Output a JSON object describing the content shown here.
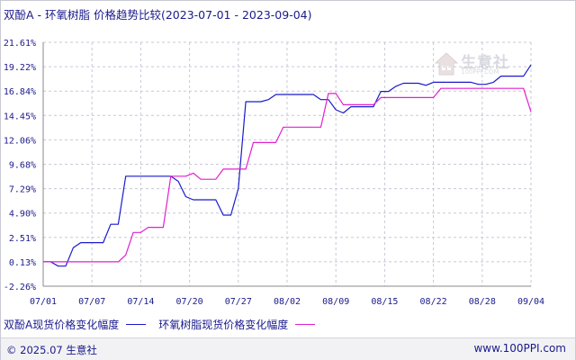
{
  "title": "双酚A - 环氧树脂 价格趋势比较(2023-07-01 - 2023-09-04)",
  "footer": {
    "copyright": "© 2025.07 生意社",
    "url": "www.100PPI.com"
  },
  "watermark": {
    "name": "生意社",
    "sub": "100PPI.COM"
  },
  "colors": {
    "series1": "#1a1acc",
    "series2": "#e020d0",
    "grid": "#c8c8d8",
    "text": "#1a1a8c"
  },
  "chart_data": {
    "type": "line",
    "x_ticks": [
      "07/01",
      "07/07",
      "07/14",
      "07/20",
      "07/27",
      "08/02",
      "08/09",
      "08/15",
      "08/22",
      "08/28",
      "09/04"
    ],
    "y_ticks": [
      "21.61%",
      "19.22%",
      "16.84%",
      "14.45%",
      "12.06%",
      "9.68%",
      "7.29%",
      "4.90%",
      "2.51%",
      "0.13%",
      "-2.26%"
    ],
    "ylim": [
      -2.26,
      21.61
    ],
    "x_range_days": [
      0,
      65
    ],
    "grid": "dashed",
    "legend_position": "bottom",
    "series": [
      {
        "name": "双酚A现货价格变化幅度",
        "color": "#1a1acc",
        "points": [
          [
            0,
            0.13
          ],
          [
            1,
            0.13
          ],
          [
            2,
            -0.3
          ],
          [
            3,
            -0.3
          ],
          [
            4,
            1.5
          ],
          [
            5,
            2.0
          ],
          [
            6,
            2.0
          ],
          [
            7,
            2.0
          ],
          [
            8,
            2.0
          ],
          [
            9,
            3.8
          ],
          [
            10,
            3.8
          ],
          [
            11,
            8.5
          ],
          [
            12,
            8.5
          ],
          [
            13,
            8.5
          ],
          [
            14,
            8.5
          ],
          [
            15,
            8.5
          ],
          [
            16,
            8.5
          ],
          [
            17,
            8.5
          ],
          [
            18,
            8.0
          ],
          [
            19,
            6.5
          ],
          [
            20,
            6.2
          ],
          [
            21,
            6.2
          ],
          [
            22,
            6.2
          ],
          [
            23,
            6.2
          ],
          [
            24,
            4.7
          ],
          [
            25,
            4.7
          ],
          [
            26,
            7.3
          ],
          [
            27,
            15.8
          ],
          [
            28,
            15.8
          ],
          [
            29,
            15.8
          ],
          [
            30,
            16.0
          ],
          [
            31,
            16.5
          ],
          [
            32,
            16.5
          ],
          [
            33,
            16.5
          ],
          [
            34,
            16.5
          ],
          [
            35,
            16.5
          ],
          [
            36,
            16.5
          ],
          [
            37,
            16.0
          ],
          [
            38,
            16.0
          ],
          [
            39,
            15.0
          ],
          [
            40,
            14.7
          ],
          [
            41,
            15.3
          ],
          [
            42,
            15.3
          ],
          [
            43,
            15.3
          ],
          [
            44,
            15.3
          ],
          [
            45,
            16.8
          ],
          [
            46,
            16.8
          ],
          [
            47,
            17.3
          ],
          [
            48,
            17.6
          ],
          [
            49,
            17.6
          ],
          [
            50,
            17.6
          ],
          [
            51,
            17.4
          ],
          [
            52,
            17.7
          ],
          [
            53,
            17.7
          ],
          [
            54,
            17.7
          ],
          [
            55,
            17.7
          ],
          [
            56,
            17.7
          ],
          [
            57,
            17.7
          ],
          [
            58,
            17.5
          ],
          [
            59,
            17.5
          ],
          [
            60,
            17.7
          ],
          [
            61,
            18.3
          ],
          [
            62,
            18.3
          ],
          [
            63,
            18.3
          ],
          [
            64,
            18.3
          ],
          [
            65,
            19.4
          ]
        ]
      },
      {
        "name": "环氧树脂现货价格变化幅度",
        "color": "#e020d0",
        "points": [
          [
            0,
            0.13
          ],
          [
            1,
            0.13
          ],
          [
            2,
            0.13
          ],
          [
            3,
            0.13
          ],
          [
            4,
            0.13
          ],
          [
            5,
            0.13
          ],
          [
            6,
            0.13
          ],
          [
            7,
            0.13
          ],
          [
            8,
            0.13
          ],
          [
            9,
            0.13
          ],
          [
            10,
            0.13
          ],
          [
            11,
            0.8
          ],
          [
            12,
            3.0
          ],
          [
            13,
            3.0
          ],
          [
            14,
            3.5
          ],
          [
            15,
            3.5
          ],
          [
            16,
            3.5
          ],
          [
            17,
            8.5
          ],
          [
            18,
            8.5
          ],
          [
            19,
            8.5
          ],
          [
            20,
            8.8
          ],
          [
            21,
            8.2
          ],
          [
            22,
            8.2
          ],
          [
            23,
            8.2
          ],
          [
            24,
            9.2
          ],
          [
            25,
            9.2
          ],
          [
            26,
            9.2
          ],
          [
            27,
            9.2
          ],
          [
            28,
            11.8
          ],
          [
            29,
            11.8
          ],
          [
            30,
            11.8
          ],
          [
            31,
            11.8
          ],
          [
            32,
            13.3
          ],
          [
            33,
            13.3
          ],
          [
            34,
            13.3
          ],
          [
            35,
            13.3
          ],
          [
            36,
            13.3
          ],
          [
            37,
            13.3
          ],
          [
            38,
            16.6
          ],
          [
            39,
            16.6
          ],
          [
            40,
            15.5
          ],
          [
            41,
            15.5
          ],
          [
            42,
            15.5
          ],
          [
            43,
            15.5
          ],
          [
            44,
            15.5
          ],
          [
            45,
            16.2
          ],
          [
            46,
            16.2
          ],
          [
            47,
            16.2
          ],
          [
            48,
            16.2
          ],
          [
            49,
            16.2
          ],
          [
            50,
            16.2
          ],
          [
            51,
            16.2
          ],
          [
            52,
            16.2
          ],
          [
            53,
            17.1
          ],
          [
            54,
            17.1
          ],
          [
            55,
            17.1
          ],
          [
            56,
            17.1
          ],
          [
            57,
            17.1
          ],
          [
            58,
            17.1
          ],
          [
            59,
            17.1
          ],
          [
            60,
            17.1
          ],
          [
            61,
            17.1
          ],
          [
            62,
            17.1
          ],
          [
            63,
            17.1
          ],
          [
            64,
            17.1
          ],
          [
            65,
            14.8
          ]
        ]
      }
    ]
  }
}
